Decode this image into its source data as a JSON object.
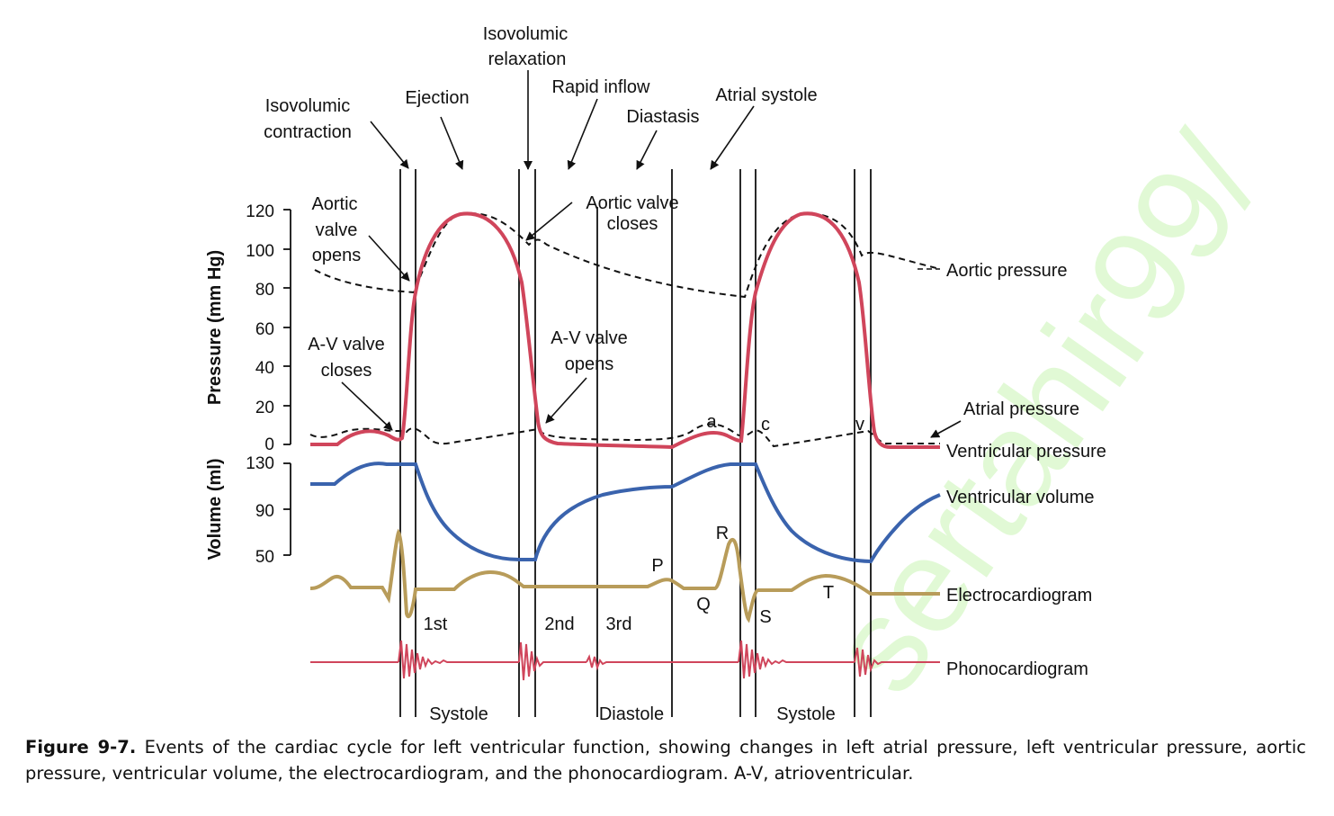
{
  "diagram": {
    "phase_labels": {
      "isovolumic_contraction": [
        "Isovolumic",
        "contraction"
      ],
      "ejection": "Ejection",
      "isovolumic_relaxation": [
        "Isovolumic",
        "relaxation"
      ],
      "rapid_inflow": "Rapid inflow",
      "diastasis": "Diastasis",
      "atrial_systole": "Atrial systole"
    },
    "event_labels": {
      "aortic_valve_opens": [
        "Aortic",
        "valve",
        "opens"
      ],
      "aortic_valve_closes": [
        "Aortic valve",
        "closes"
      ],
      "av_valve_closes": [
        "A-V valve",
        "closes"
      ],
      "av_valve_opens": [
        "A-V valve",
        "opens"
      ]
    },
    "axes": {
      "pressure_title": "Pressure (mm Hg)",
      "pressure_ticks": [
        "120",
        "100",
        "80",
        "60",
        "40",
        "20",
        "0"
      ],
      "volume_title": "Volume (ml)",
      "volume_ticks": [
        "130",
        "90",
        "50"
      ]
    },
    "trace_labels": {
      "aortic_pressure": "Aortic pressure",
      "atrial_pressure": "Atrial pressure",
      "ventricular_pressure": "Ventricular pressure",
      "ventricular_volume": "Ventricular volume",
      "electrocardiogram": "Electrocardiogram",
      "phonocardiogram": "Phonocardiogram"
    },
    "wave_labels": {
      "a": "a",
      "c": "c",
      "v": "v",
      "P": "P",
      "Q": "Q",
      "R": "R",
      "S": "S",
      "T": "T"
    },
    "sound_labels": {
      "first": "1st",
      "second": "2nd",
      "third": "3rd"
    },
    "period_labels": {
      "systole": "Systole",
      "diastole": "Diastole"
    },
    "colors": {
      "pressure": "#d0455b",
      "volume": "#3a63ad",
      "ecg": "#b89c5a",
      "phono": "#d0455b",
      "dashed": "#111111",
      "watermark": "#c9f5b4"
    },
    "watermark": "sertahir99/"
  },
  "caption": {
    "label": "Figure 9-7.",
    "text": " Events of the cardiac cycle for left ventricular function, showing changes in left atrial pressure, left ventricular pressure, aortic pressure, ventricular volume, the electrocardiogram, and the phonocardiogram. A-V, atrioventricular."
  }
}
